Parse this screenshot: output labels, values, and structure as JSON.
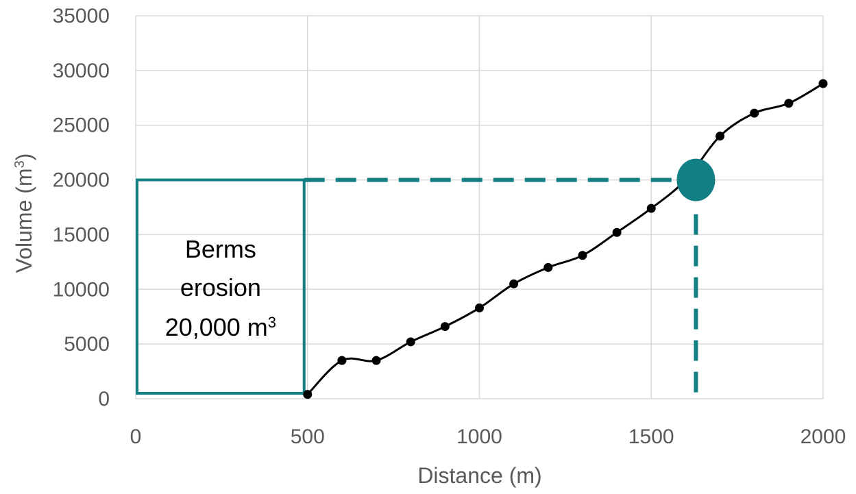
{
  "colors": {
    "grid": "#d9d9d9",
    "line": "#000000",
    "accent": "#127f84",
    "text": "#595959"
  },
  "chart_data": {
    "type": "line",
    "xlabel": "Distance (m)",
    "ylabel": {
      "text": "Volume (m",
      "sup": "3",
      "suffix": ")"
    },
    "xlim": [
      0,
      2000
    ],
    "ylim": [
      0,
      35000
    ],
    "xticks": [
      0,
      500,
      1000,
      1500,
      2000
    ],
    "yticks": [
      0,
      5000,
      10000,
      15000,
      20000,
      25000,
      30000,
      35000
    ],
    "grid": true,
    "series": [
      {
        "smooth": true,
        "markers": true,
        "x": [
          500,
          600,
          700,
          800,
          900,
          1000,
          1100,
          1200,
          1300,
          1400,
          1500,
          1600,
          1700,
          1800,
          1900,
          2000
        ],
        "y": [
          400,
          3500,
          3500,
          5200,
          6600,
          8300,
          10500,
          12000,
          13100,
          15200,
          17400,
          20000,
          24000,
          26100,
          27000,
          28800
        ]
      }
    ],
    "annotations": {
      "box": {
        "x_range": [
          0,
          500
        ],
        "y_range": [
          0,
          20000
        ],
        "line1": "Berms",
        "line2": "erosion",
        "line3": "20,000 m",
        "line3_sup": "3"
      },
      "marker": {
        "x": 1630,
        "y": 20000
      },
      "dashed_horizontal": {
        "y": 20000,
        "x_from": 500,
        "x_to": 1630
      },
      "dashed_vertical": {
        "x": 1630,
        "y_from": 0,
        "y_to": 20000
      }
    }
  }
}
